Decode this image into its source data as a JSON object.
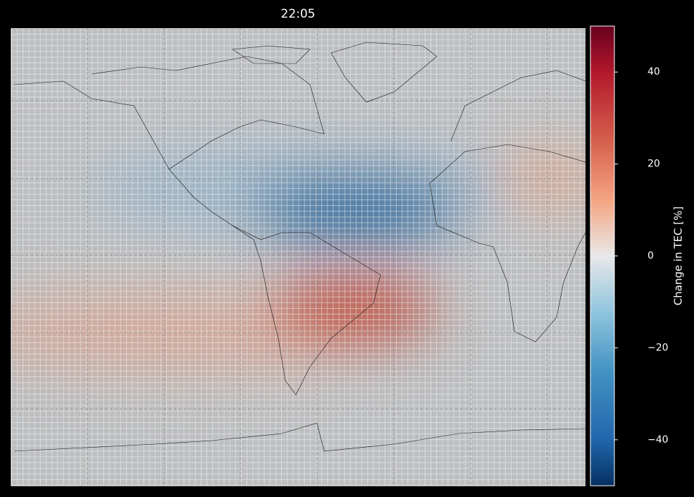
{
  "title": "22:05",
  "colorbar": {
    "label": "Change in TEC [%]",
    "lim": [
      -50,
      50
    ],
    "ticks": [
      {
        "value": -40,
        "label": "−40"
      },
      {
        "value": -20,
        "label": "−20"
      },
      0,
      20,
      40
    ]
  }
}
